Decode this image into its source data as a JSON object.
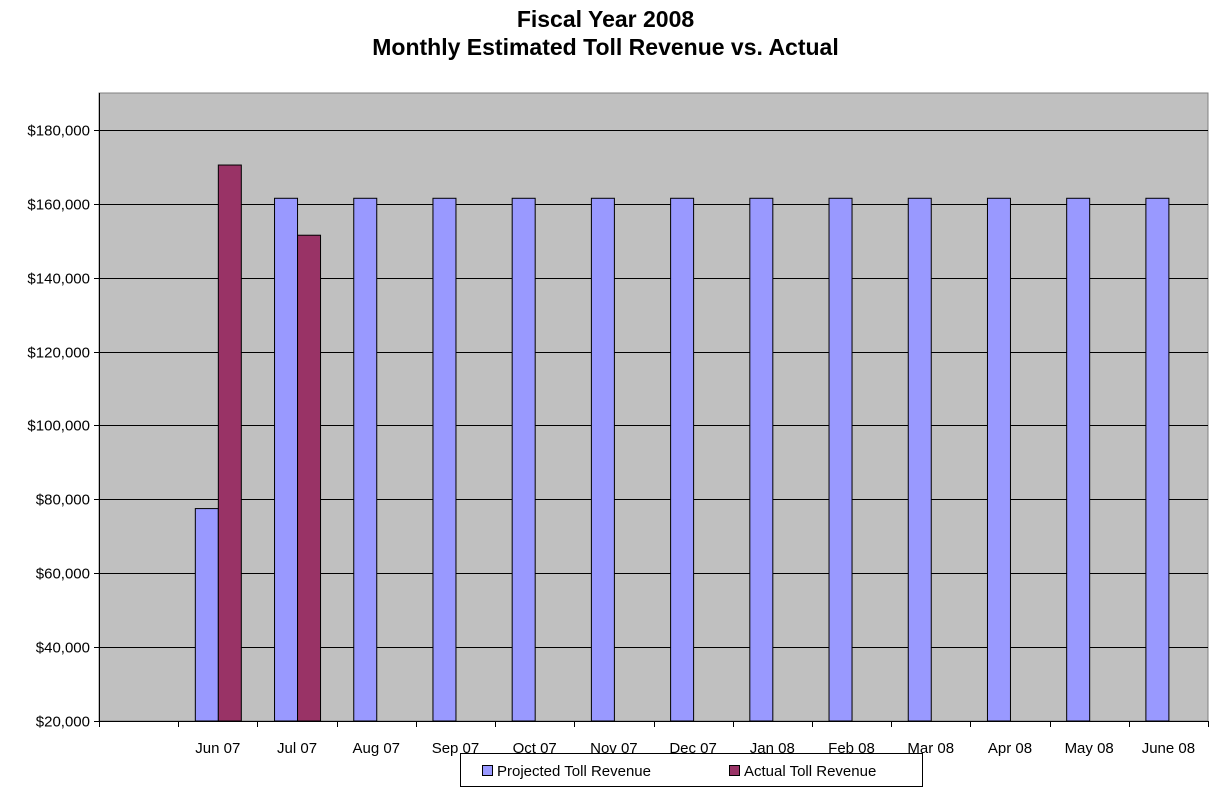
{
  "chart_data": {
    "type": "bar",
    "title": "Fiscal Year 2008",
    "subtitle": "Monthly Estimated Toll Revenue vs. Actual",
    "categories": [
      "",
      "Jun 07",
      "Jul 07",
      "Aug 07",
      "Sep 07",
      "Oct 07",
      "Nov 07",
      "Dec 07",
      "Jan 08",
      "Feb 08",
      "Mar 08",
      "Apr 08",
      "May 08",
      "June 08"
    ],
    "series": [
      {
        "name": "Projected Toll Revenue",
        "color": "#9999ff",
        "values": [
          null,
          77500,
          161500,
          161500,
          161500,
          161500,
          161500,
          161500,
          161500,
          161500,
          161500,
          161500,
          161500,
          161500
        ]
      },
      {
        "name": "Actual Toll Revenue",
        "color": "#993366",
        "values": [
          null,
          170500,
          151500,
          null,
          null,
          null,
          null,
          null,
          null,
          null,
          null,
          null,
          null,
          null
        ]
      }
    ],
    "ylim": [
      20000,
      190000
    ],
    "yticks": [
      20000,
      40000,
      60000,
      80000,
      100000,
      120000,
      140000,
      160000,
      180000
    ],
    "ytick_labels": [
      "$20,000",
      "$40,000",
      "$60,000",
      "$80,000",
      "$100,000",
      "$120,000",
      "$140,000",
      "$160,000",
      "$180,000"
    ],
    "xlabel": "",
    "ylabel": "",
    "grid": true,
    "plot_background": "#c0c0c0",
    "legend_position": "bottom"
  }
}
